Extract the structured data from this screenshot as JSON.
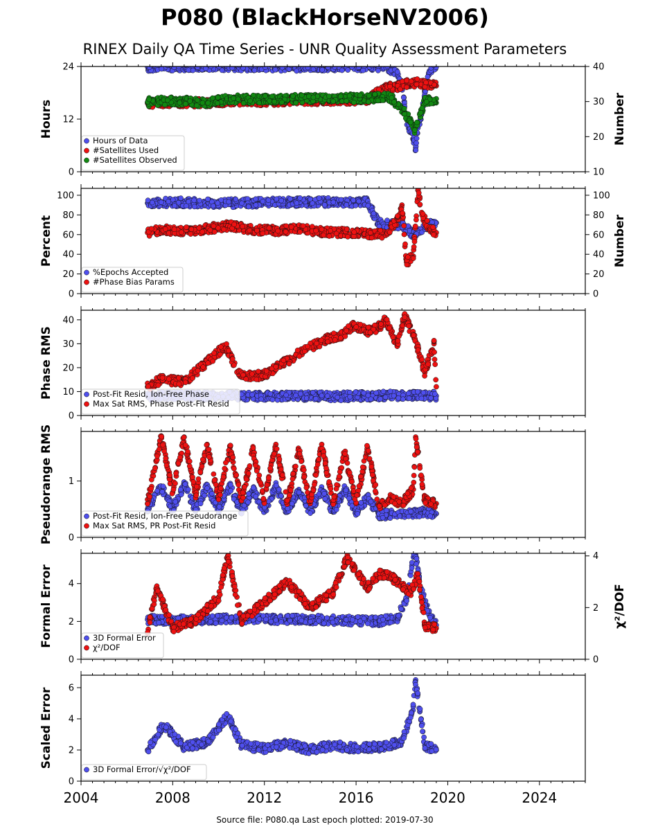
{
  "title": "P080 (BlackHorseNV2006)",
  "subtitle": "RINEX Daily QA Time Series - UNR Quality Assessment Parameters",
  "footer": "Source file: P080.qa Last epoch plotted: 2019-07-30",
  "colors": {
    "blue": "#4f4fee",
    "red": "#ee1111",
    "green": "#118811",
    "edge": "#111111"
  },
  "chart_data": [
    {
      "type": "scatter",
      "ylabel": "Hours",
      "y2label": "Number",
      "xlim": [
        2004,
        2026
      ],
      "ylim": [
        0,
        24
      ],
      "y2lim": [
        10,
        40
      ],
      "yticks": [
        "0",
        "12",
        "24"
      ],
      "y2ticks": [
        "10",
        "20",
        "30",
        "40"
      ],
      "legend": "lower-left",
      "series": [
        {
          "name": "Hours of Data",
          "color": "blue",
          "axis": "left",
          "points": [
            [
              2006.9,
              23.9
            ],
            [
              2007.5,
              24
            ],
            [
              2008.5,
              24
            ],
            [
              2010,
              24
            ],
            [
              2011.5,
              24
            ],
            [
              2013,
              23.9
            ],
            [
              2014.5,
              24
            ],
            [
              2016,
              24
            ],
            [
              2017.3,
              24
            ],
            [
              2017.8,
              22.5
            ],
            [
              2018,
              20
            ],
            [
              2018.2,
              12
            ],
            [
              2018.35,
              9
            ],
            [
              2018.5,
              7.5
            ],
            [
              2018.6,
              5.5
            ],
            [
              2018.7,
              10
            ],
            [
              2018.85,
              13
            ],
            [
              2019,
              18
            ],
            [
              2019.2,
              23
            ],
            [
              2019.5,
              24
            ]
          ]
        },
        {
          "name": "#Satellites Used",
          "color": "red",
          "axis": "right",
          "points": [
            [
              2006.9,
              29.5
            ],
            [
              2008,
              29.8
            ],
            [
              2009.5,
              29.6
            ],
            [
              2010.5,
              30.2
            ],
            [
              2012,
              30.1
            ],
            [
              2013.5,
              30.3
            ],
            [
              2015,
              30.4
            ],
            [
              2016.5,
              30.6
            ],
            [
              2017.3,
              34
            ],
            [
              2017.8,
              34.2
            ],
            [
              2018.2,
              35
            ],
            [
              2018.6,
              35.3
            ],
            [
              2019,
              35
            ],
            [
              2019.5,
              34.5
            ]
          ]
        },
        {
          "name": "#Satellites Observed",
          "color": "green",
          "axis": "right",
          "points": [
            [
              2006.9,
              29.8
            ],
            [
              2007.5,
              30.2
            ],
            [
              2008.5,
              30.1
            ],
            [
              2009.5,
              29.6
            ],
            [
              2010.5,
              30.8
            ],
            [
              2012,
              30.6
            ],
            [
              2013.5,
              30.8
            ],
            [
              2015,
              30.9
            ],
            [
              2016.5,
              31
            ],
            [
              2017.5,
              31.2
            ],
            [
              2018,
              28
            ],
            [
              2018.3,
              25
            ],
            [
              2018.55,
              22
            ],
            [
              2018.7,
              24
            ],
            [
              2019,
              30
            ],
            [
              2019.5,
              30.8
            ]
          ]
        }
      ]
    },
    {
      "type": "scatter",
      "ylabel": "Percent",
      "y2label": "Number",
      "xlim": [
        2004,
        2026
      ],
      "ylim": [
        0,
        107
      ],
      "y2lim": [
        0,
        107
      ],
      "yticks": [
        "0",
        "20",
        "40",
        "60",
        "80",
        "100"
      ],
      "y2ticks": [
        "0",
        "20",
        "40",
        "60",
        "80",
        "100"
      ],
      "legend": "lower-left",
      "series": [
        {
          "name": "%Epochs Accepted",
          "color": "blue",
          "axis": "left",
          "points": [
            [
              2006.9,
              92
            ],
            [
              2008,
              93
            ],
            [
              2009.5,
              92
            ],
            [
              2011,
              92
            ],
            [
              2012.5,
              93
            ],
            [
              2014,
              93
            ],
            [
              2015.5,
              93
            ],
            [
              2016.5,
              93
            ],
            [
              2017,
              71
            ],
            [
              2018,
              70
            ],
            [
              2018.5,
              60
            ],
            [
              2019,
              68
            ],
            [
              2019.5,
              72
            ]
          ]
        },
        {
          "name": "#Phase Bias Params",
          "color": "red",
          "axis": "right",
          "points": [
            [
              2006.9,
              62
            ],
            [
              2007.5,
              65
            ],
            [
              2008.5,
              63
            ],
            [
              2009.5,
              66
            ],
            [
              2010.5,
              69
            ],
            [
              2011.5,
              65
            ],
            [
              2012.5,
              64
            ],
            [
              2013.5,
              66
            ],
            [
              2014.5,
              63
            ],
            [
              2015.5,
              62
            ],
            [
              2016.5,
              61
            ],
            [
              2017.3,
              60
            ],
            [
              2017.8,
              75
            ],
            [
              2018,
              90
            ],
            [
              2018.2,
              32
            ],
            [
              2018.5,
              38
            ],
            [
              2018.7,
              105
            ],
            [
              2018.9,
              80
            ],
            [
              2019.2,
              65
            ],
            [
              2019.5,
              62
            ]
          ]
        }
      ]
    },
    {
      "type": "scatter",
      "ylabel": "Phase RMS",
      "xlim": [
        2004,
        2026
      ],
      "ylim": [
        0,
        44
      ],
      "yticks": [
        "0",
        "10",
        "20",
        "30",
        "40"
      ],
      "legend": "lower-left",
      "series": [
        {
          "name": "Post-Fit Resid, Ion-Free Phase",
          "color": "blue",
          "axis": "left",
          "points": [
            [
              2006.9,
              8
            ],
            [
              2008,
              8.5
            ],
            [
              2009.5,
              8
            ],
            [
              2011,
              8.2
            ],
            [
              2012.5,
              8
            ],
            [
              2014,
              8.1
            ],
            [
              2015.5,
              8
            ],
            [
              2017,
              8.3
            ],
            [
              2018.5,
              8.5
            ],
            [
              2019.5,
              8.2
            ]
          ]
        },
        {
          "name": "Max Sat RMS, Phase Post-Fit Resid",
          "color": "red",
          "axis": "left",
          "points": [
            [
              2006.9,
              12
            ],
            [
              2007.5,
              15
            ],
            [
              2008.5,
              14
            ],
            [
              2010.3,
              29
            ],
            [
              2011,
              16
            ],
            [
              2012,
              17
            ],
            [
              2013.7,
              27
            ],
            [
              2014.7,
              32
            ],
            [
              2015.5,
              34
            ],
            [
              2015.9,
              38
            ],
            [
              2016.5,
              35
            ],
            [
              2017,
              37
            ],
            [
              2017.3,
              40
            ],
            [
              2017.8,
              29
            ],
            [
              2018.1,
              42
            ],
            [
              2018.6,
              31
            ],
            [
              2019,
              18
            ],
            [
              2019.4,
              30
            ],
            [
              2019.5,
              12
            ]
          ]
        }
      ]
    },
    {
      "type": "scatter",
      "ylabel": "Pseudorange RMS",
      "xlim": [
        2004,
        2026
      ],
      "ylim": [
        0,
        1.88
      ],
      "yticks": [
        "0",
        "1"
      ],
      "legend": "lower-left",
      "series": [
        {
          "name": "Post-Fit Resid, Ion-Free Pseudorange",
          "color": "blue",
          "axis": "left",
          "points": [
            [
              2006.9,
              0.5
            ],
            [
              2007.5,
              0.9
            ],
            [
              2008,
              0.5
            ],
            [
              2008.5,
              0.95
            ],
            [
              2009,
              0.5
            ],
            [
              2009.5,
              0.9
            ],
            [
              2010,
              0.5
            ],
            [
              2010.5,
              0.9
            ],
            [
              2011,
              0.45
            ],
            [
              2011.5,
              0.85
            ],
            [
              2012,
              0.45
            ],
            [
              2012.5,
              0.9
            ],
            [
              2013,
              0.45
            ],
            [
              2013.5,
              0.85
            ],
            [
              2014,
              0.45
            ],
            [
              2014.5,
              0.85
            ],
            [
              2015,
              0.45
            ],
            [
              2015.5,
              0.85
            ],
            [
              2016,
              0.45
            ],
            [
              2016.5,
              0.7
            ],
            [
              2017,
              0.4
            ],
            [
              2018,
              0.42
            ],
            [
              2019,
              0.45
            ],
            [
              2019.5,
              0.42
            ]
          ]
        },
        {
          "name": "Max Sat RMS, PR Post-Fit Resid",
          "color": "red",
          "axis": "left",
          "points": [
            [
              2006.9,
              0.6
            ],
            [
              2007.5,
              1.8
            ],
            [
              2008,
              0.8
            ],
            [
              2008.5,
              1.78
            ],
            [
              2009,
              0.75
            ],
            [
              2009.5,
              1.65
            ],
            [
              2010,
              0.7
            ],
            [
              2010.5,
              1.6
            ],
            [
              2011,
              0.65
            ],
            [
              2011.5,
              1.55
            ],
            [
              2012,
              0.65
            ],
            [
              2012.5,
              1.65
            ],
            [
              2013,
              0.6
            ],
            [
              2013.5,
              1.55
            ],
            [
              2014,
              0.6
            ],
            [
              2014.5,
              1.65
            ],
            [
              2015,
              0.6
            ],
            [
              2015.5,
              1.5
            ],
            [
              2016,
              0.6
            ],
            [
              2016.5,
              1.6
            ],
            [
              2017,
              0.55
            ],
            [
              2017.5,
              0.7
            ],
            [
              2018,
              0.6
            ],
            [
              2018.5,
              0.85
            ],
            [
              2018.6,
              1.78
            ],
            [
              2019,
              0.65
            ],
            [
              2019.5,
              0.6
            ]
          ]
        }
      ]
    },
    {
      "type": "scatter",
      "ylabel": "Formal Error",
      "y2label": "χ²/DOF",
      "xlim": [
        2004,
        2026
      ],
      "ylim": [
        0,
        5.6
      ],
      "y2lim": [
        0,
        4.1
      ],
      "yticks": [
        "0",
        "2",
        "4"
      ],
      "y2ticks": [
        "0",
        "2",
        "4"
      ],
      "legend": "lower-left",
      "series": [
        {
          "name": "3D Formal Error",
          "color": "blue",
          "axis": "left",
          "points": [
            [
              2006.9,
              2.1
            ],
            [
              2008,
              2.05
            ],
            [
              2009.5,
              2.1
            ],
            [
              2011,
              2.15
            ],
            [
              2012.5,
              2.1
            ],
            [
              2014,
              2.1
            ],
            [
              2015.5,
              2.05
            ],
            [
              2017,
              2
            ],
            [
              2017.8,
              2.2
            ],
            [
              2018.2,
              3.2
            ],
            [
              2018.5,
              5.4
            ],
            [
              2018.6,
              5.5
            ],
            [
              2018.8,
              3.8
            ],
            [
              2019.2,
              2.3
            ],
            [
              2019.5,
              1.8
            ]
          ]
        },
        {
          "name": "χ²/DOF",
          "color": "red",
          "axis": "right",
          "points": [
            [
              2006.9,
              1
            ],
            [
              2007.3,
              2.8
            ],
            [
              2008,
              1.2
            ],
            [
              2009,
              1.5
            ],
            [
              2010,
              2.4
            ],
            [
              2010.4,
              4
            ],
            [
              2011,
              1.5
            ],
            [
              2012,
              2.2
            ],
            [
              2013,
              3
            ],
            [
              2014,
              2
            ],
            [
              2015,
              2.6
            ],
            [
              2015.6,
              3.9
            ],
            [
              2016.5,
              2.8
            ],
            [
              2017,
              3.3
            ],
            [
              2017.5,
              3.2
            ],
            [
              2018.4,
              2.6
            ],
            [
              2018.7,
              3.3
            ],
            [
              2019,
              1.3
            ],
            [
              2019.5,
              1.2
            ]
          ]
        }
      ]
    },
    {
      "type": "scatter",
      "ylabel": "Scaled Error",
      "xlim": [
        2004,
        2026
      ],
      "ylim": [
        0,
        6.8
      ],
      "yticks": [
        "0",
        "2",
        "4",
        "6"
      ],
      "xticks": [
        "2004",
        "2008",
        "2012",
        "2016",
        "2020",
        "2024"
      ],
      "legend": "lower-left",
      "series": [
        {
          "name": "3D Formal Error/√χ²/DOF",
          "color": "blue",
          "axis": "left",
          "points": [
            [
              2006.9,
              2
            ],
            [
              2007.6,
              3.6
            ],
            [
              2008.5,
              2.2
            ],
            [
              2009.5,
              2.5
            ],
            [
              2010.4,
              4.2
            ],
            [
              2011,
              2.3
            ],
            [
              2012,
              2.1
            ],
            [
              2013,
              2.4
            ],
            [
              2014,
              2
            ],
            [
              2015,
              2.3
            ],
            [
              2016,
              2.1
            ],
            [
              2017,
              2.2
            ],
            [
              2018,
              2.5
            ],
            [
              2018.5,
              4.8
            ],
            [
              2018.6,
              6.5
            ],
            [
              2019,
              2.3
            ],
            [
              2019.5,
              2
            ]
          ]
        }
      ]
    }
  ]
}
